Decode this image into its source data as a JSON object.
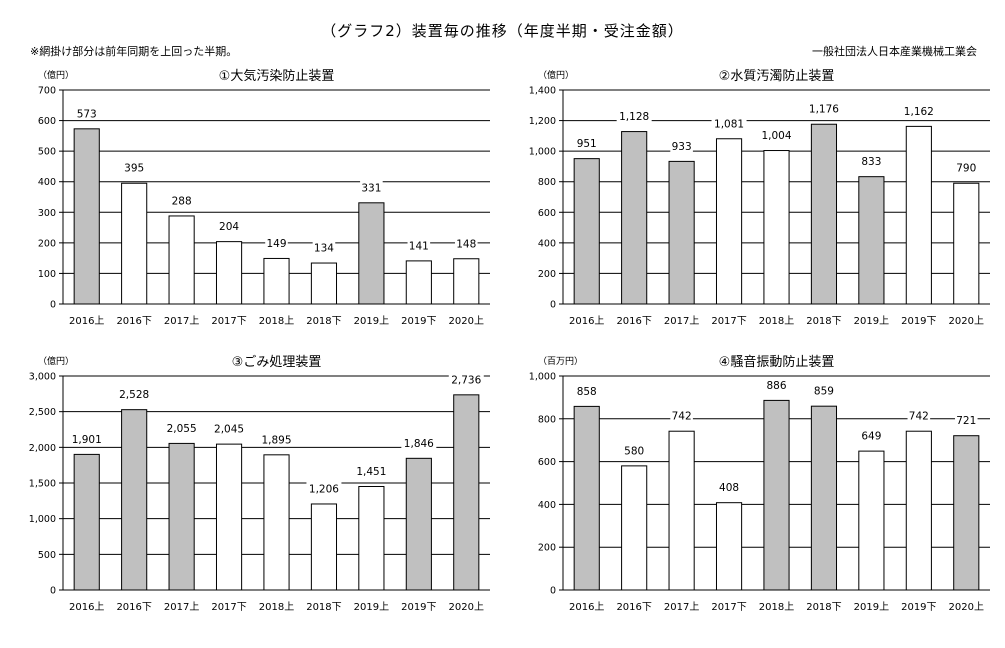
{
  "header": {
    "title": "（グラフ2）装置毎の推移（年度半期・受注金額）",
    "note": "※網掛け部分は前年同期を上回った半期。",
    "source": "一般社団法人日本産業機械工業会"
  },
  "colors": {
    "shaded": "#c0c0c0",
    "plain": "#ffffff",
    "stroke": "#000000"
  },
  "chart_data": [
    {
      "type": "bar",
      "title": "①大気汚染防止装置",
      "unit": "（億円）",
      "categories": [
        "2016上",
        "2016下",
        "2017上",
        "2017下",
        "2018上",
        "2018下",
        "2019上",
        "2019下",
        "2020上"
      ],
      "values": [
        573,
        395,
        288,
        204,
        149,
        134,
        331,
        141,
        148
      ],
      "value_labels": [
        "573",
        "395",
        "288",
        "204",
        "149",
        "134",
        "331",
        "141",
        "148"
      ],
      "shaded": [
        true,
        false,
        false,
        false,
        false,
        false,
        true,
        false,
        false
      ],
      "ylim": [
        0,
        700
      ],
      "yticks": [
        0,
        100,
        200,
        300,
        400,
        500,
        600,
        700
      ],
      "ytick_labels": [
        "0",
        "100",
        "200",
        "300",
        "400",
        "500",
        "600",
        "700"
      ],
      "grid": true
    },
    {
      "type": "bar",
      "title": "②水質汚濁防止装置",
      "unit": "（億円）",
      "categories": [
        "2016上",
        "2016下",
        "2017上",
        "2017下",
        "2018上",
        "2018下",
        "2019上",
        "2019下",
        "2020上"
      ],
      "values": [
        951,
        1128,
        933,
        1081,
        1004,
        1176,
        833,
        1162,
        790
      ],
      "value_labels": [
        "951",
        "1,128",
        "933",
        "1,081",
        "1,004",
        "1,176",
        "833",
        "1,162",
        "790"
      ],
      "shaded": [
        true,
        true,
        true,
        false,
        false,
        true,
        true,
        false,
        false
      ],
      "ylim": [
        0,
        1400
      ],
      "yticks": [
        0,
        200,
        400,
        600,
        800,
        1000,
        1200,
        1400
      ],
      "ytick_labels": [
        "0",
        "200",
        "400",
        "600",
        "800",
        "1,000",
        "1,200",
        "1,400"
      ],
      "grid": true
    },
    {
      "type": "bar",
      "title": "③ごみ処理装置",
      "unit": "（億円）",
      "categories": [
        "2016上",
        "2016下",
        "2017上",
        "2017下",
        "2018上",
        "2018下",
        "2019上",
        "2019下",
        "2020上"
      ],
      "values": [
        1901,
        2528,
        2055,
        2045,
        1895,
        1206,
        1451,
        1846,
        2736
      ],
      "value_labels": [
        "1,901",
        "2,528",
        "2,055",
        "2,045",
        "1,895",
        "1,206",
        "1,451",
        "1,846",
        "2,736"
      ],
      "shaded": [
        true,
        true,
        true,
        false,
        false,
        false,
        false,
        true,
        true
      ],
      "ylim": [
        0,
        3000
      ],
      "yticks": [
        0,
        500,
        1000,
        1500,
        2000,
        2500,
        3000
      ],
      "ytick_labels": [
        "0",
        "500",
        "1,000",
        "1,500",
        "2,000",
        "2,500",
        "3,000"
      ],
      "grid": true
    },
    {
      "type": "bar",
      "title": "④騒音振動防止装置",
      "unit": "（百万円）",
      "categories": [
        "2016上",
        "2016下",
        "2017上",
        "2017下",
        "2018上",
        "2018下",
        "2019上",
        "2019下",
        "2020上"
      ],
      "values": [
        858,
        580,
        742,
        408,
        886,
        859,
        649,
        742,
        721
      ],
      "value_labels": [
        "858",
        "580",
        "742",
        "408",
        "886",
        "859",
        "649",
        "742",
        "721"
      ],
      "shaded": [
        true,
        false,
        false,
        false,
        true,
        true,
        false,
        false,
        true
      ],
      "ylim": [
        0,
        1000
      ],
      "yticks": [
        0,
        200,
        400,
        600,
        800,
        1000
      ],
      "ytick_labels": [
        "0",
        "200",
        "400",
        "600",
        "800",
        "1,000"
      ],
      "grid": true
    }
  ]
}
